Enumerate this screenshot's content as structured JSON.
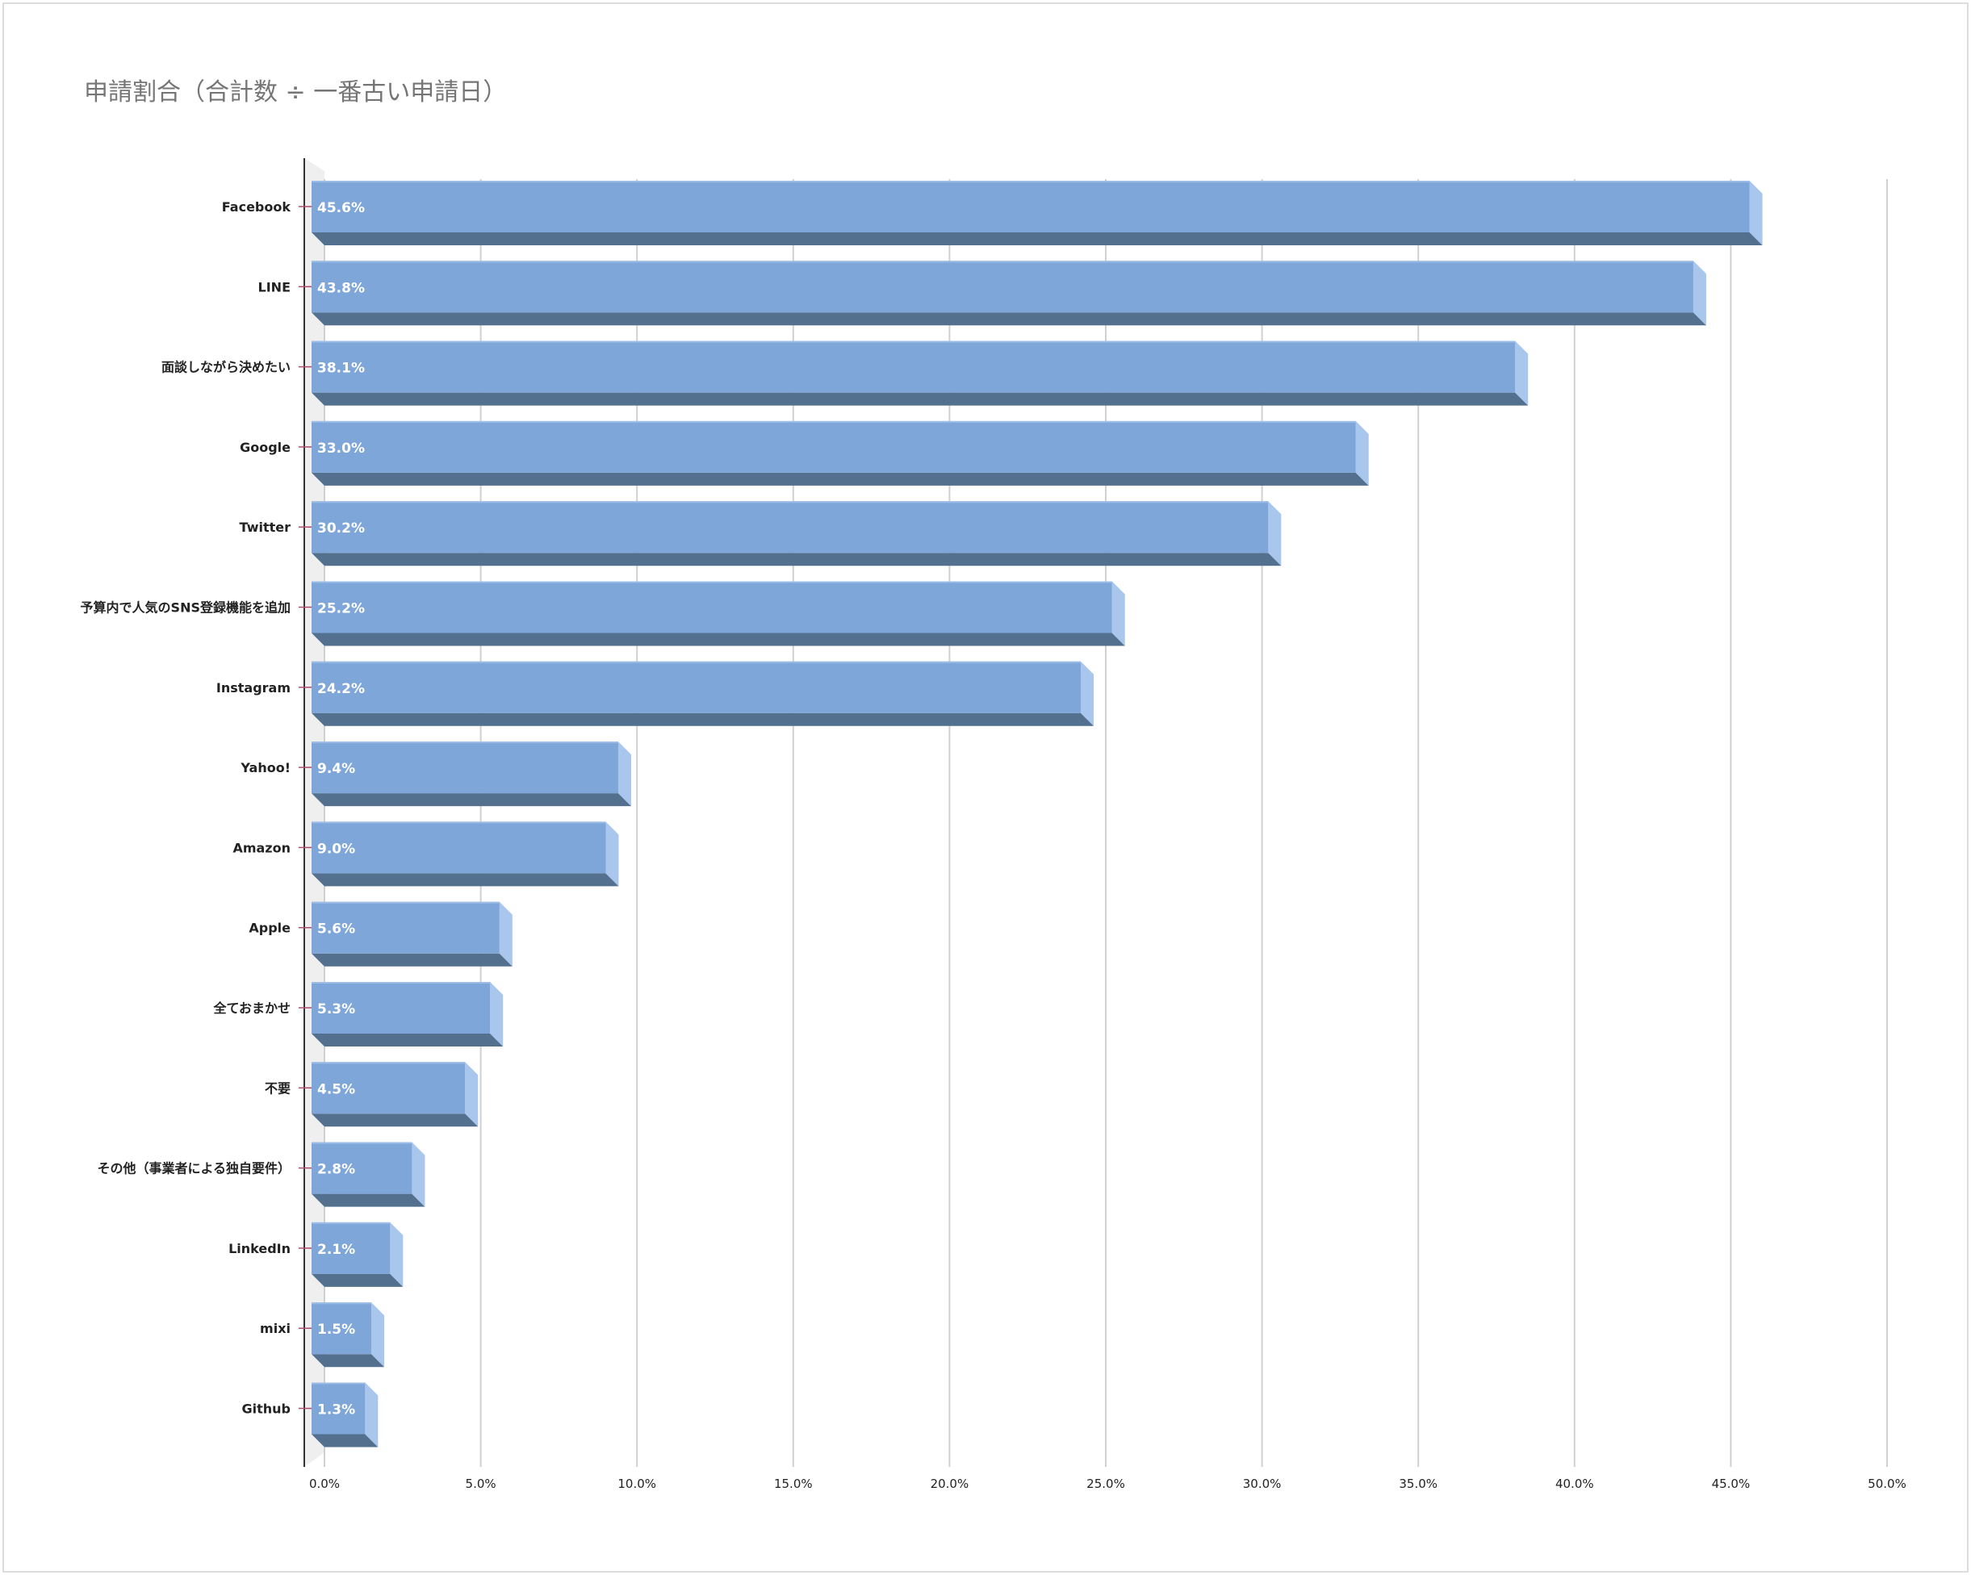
{
  "chart_data": {
    "type": "bar",
    "orientation": "horizontal",
    "style": "3d",
    "title": "申請割合（合計数 ÷ 一番古い申請日）",
    "xlabel": "",
    "ylabel": "",
    "xlim": [
      0,
      50
    ],
    "ticks": [
      "0.0%",
      "5.0%",
      "10.0%",
      "15.0%",
      "20.0%",
      "25.0%",
      "30.0%",
      "35.0%",
      "40.0%",
      "45.0%",
      "50.0%"
    ],
    "grid": true,
    "legend": "none",
    "categories": [
      "Facebook",
      "LINE",
      "面談しながら決めたい",
      "Google",
      "Twitter",
      "予算内で人気のSNS登録機能を追加",
      "Instagram",
      "Yahoo!",
      "Amazon",
      "Apple",
      "全ておまかせ",
      "不要",
      "その他（事業者による独自要件）",
      "LinkedIn",
      "mixi",
      "Github"
    ],
    "values": [
      45.6,
      43.8,
      38.1,
      33.0,
      30.2,
      25.2,
      24.2,
      9.4,
      9.0,
      5.6,
      5.3,
      4.5,
      2.8,
      2.1,
      1.5,
      1.3
    ],
    "data_labels": [
      "45.6%",
      "43.8%",
      "38.1%",
      "33.0%",
      "30.2%",
      "25.2%",
      "24.2%",
      "9.4%",
      "9.0%",
      "5.6%",
      "5.3%",
      "4.5%",
      "2.8%",
      "2.1%",
      "1.5%",
      "1.3%"
    ],
    "colors": {
      "bar_front": "#7ea6d8",
      "bar_top": "#9bbce6",
      "bar_side": "#a9c6ec",
      "bar_bottom": "#54708f",
      "grid": "#d0d0d0",
      "axis": "#333333",
      "tick_mark": "#b04a6a"
    }
  }
}
